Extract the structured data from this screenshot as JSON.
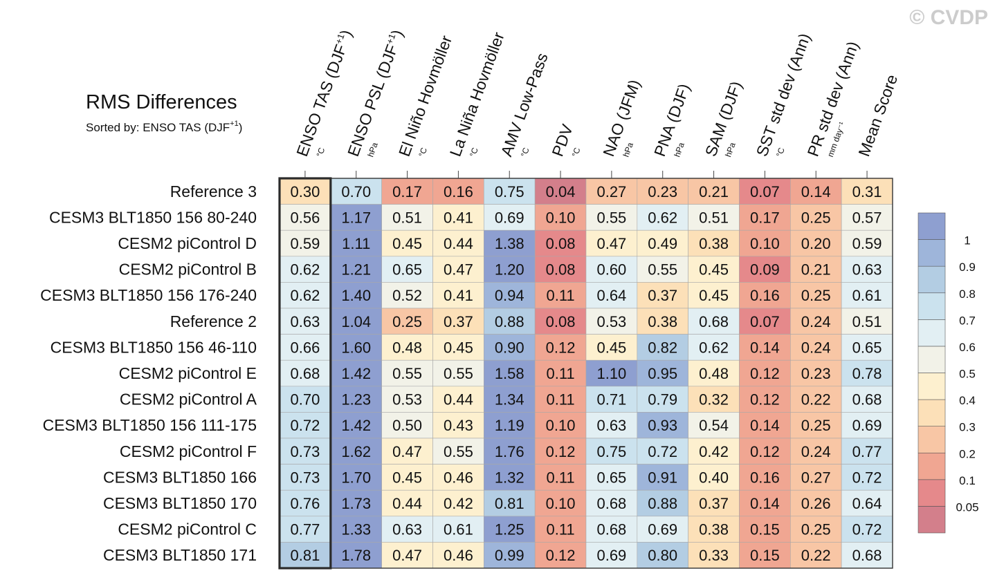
{
  "watermark": "© CVDP",
  "chart_data": {
    "type": "heatmap",
    "title": "RMS Differences",
    "subtitle_prefix": "Sorted by: ENSO TAS (DJF",
    "subtitle_sup": "+1",
    "subtitle_suffix": ")",
    "columns": [
      {
        "label": "ENSO TAS (DJF",
        "sup": "+1",
        "close": ")",
        "unit": "°C"
      },
      {
        "label": "ENSO PSL (DJF",
        "sup": "+1",
        "close": ")",
        "unit": "hPa"
      },
      {
        "label": "El Niño Hovmöller",
        "sup": "",
        "close": "",
        "unit": "°C"
      },
      {
        "label": "La Niña Hovmöller",
        "sup": "",
        "close": "",
        "unit": "°C"
      },
      {
        "label": "AMV Low-Pass",
        "sup": "",
        "close": "",
        "unit": "°C"
      },
      {
        "label": "PDV",
        "sup": "",
        "close": "",
        "unit": "°C"
      },
      {
        "label": "NAO (JFM)",
        "sup": "",
        "close": "",
        "unit": "hPa"
      },
      {
        "label": "PNA (DJF)",
        "sup": "",
        "close": "",
        "unit": "hPa"
      },
      {
        "label": "SAM (DJF)",
        "sup": "",
        "close": "",
        "unit": "hPa"
      },
      {
        "label": "SST std dev (Ann)",
        "sup": "",
        "close": "",
        "unit": "°C"
      },
      {
        "label": "PR std dev (Ann)",
        "sup": "",
        "close": "",
        "unit": "mm day⁻¹"
      },
      {
        "label": "Mean Score",
        "sup": "",
        "close": "",
        "unit": ""
      }
    ],
    "rows": [
      "Reference 3",
      "CESM3 BLT1850 156 80-240",
      "CESM2 piControl D",
      "CESM2 piControl B",
      "CESM3 BLT1850 156 176-240",
      "Reference 2",
      "CESM3 BLT1850 156 46-110",
      "CESM2 piControl E",
      "CESM2 piControl A",
      "CESM3 BLT1850 156 111-175",
      "CESM2 piControl F",
      "CESM3 BLT1850 166",
      "CESM3 BLT1850 170",
      "CESM2 piControl C",
      "CESM3 BLT1850 171"
    ],
    "values": [
      [
        "0.30",
        "0.70",
        "0.17",
        "0.16",
        "0.75",
        "0.04",
        "0.27",
        "0.23",
        "0.21",
        "0.07",
        "0.14",
        "0.31"
      ],
      [
        "0.56",
        "1.17",
        "0.51",
        "0.41",
        "0.69",
        "0.10",
        "0.55",
        "0.62",
        "0.51",
        "0.17",
        "0.25",
        "0.57"
      ],
      [
        "0.59",
        "1.11",
        "0.45",
        "0.44",
        "1.38",
        "0.08",
        "0.47",
        "0.49",
        "0.38",
        "0.10",
        "0.20",
        "0.59"
      ],
      [
        "0.62",
        "1.21",
        "0.65",
        "0.47",
        "1.20",
        "0.08",
        "0.60",
        "0.55",
        "0.45",
        "0.09",
        "0.21",
        "0.63"
      ],
      [
        "0.62",
        "1.40",
        "0.52",
        "0.41",
        "0.94",
        "0.11",
        "0.64",
        "0.37",
        "0.45",
        "0.16",
        "0.25",
        "0.61"
      ],
      [
        "0.63",
        "1.04",
        "0.25",
        "0.37",
        "0.88",
        "0.08",
        "0.53",
        "0.38",
        "0.68",
        "0.07",
        "0.24",
        "0.51"
      ],
      [
        "0.66",
        "1.60",
        "0.48",
        "0.45",
        "0.90",
        "0.12",
        "0.45",
        "0.82",
        "0.62",
        "0.14",
        "0.24",
        "0.65"
      ],
      [
        "0.68",
        "1.42",
        "0.55",
        "0.55",
        "1.58",
        "0.11",
        "1.10",
        "0.95",
        "0.48",
        "0.12",
        "0.23",
        "0.78"
      ],
      [
        "0.70",
        "1.23",
        "0.53",
        "0.44",
        "1.34",
        "0.11",
        "0.71",
        "0.79",
        "0.32",
        "0.12",
        "0.22",
        "0.68"
      ],
      [
        "0.72",
        "1.42",
        "0.50",
        "0.43",
        "1.19",
        "0.10",
        "0.63",
        "0.93",
        "0.54",
        "0.14",
        "0.25",
        "0.69"
      ],
      [
        "0.73",
        "1.62",
        "0.47",
        "0.55",
        "1.76",
        "0.12",
        "0.75",
        "0.72",
        "0.42",
        "0.12",
        "0.24",
        "0.77"
      ],
      [
        "0.73",
        "1.70",
        "0.45",
        "0.46",
        "1.32",
        "0.11",
        "0.65",
        "0.91",
        "0.40",
        "0.16",
        "0.27",
        "0.72"
      ],
      [
        "0.76",
        "1.73",
        "0.44",
        "0.42",
        "0.81",
        "0.10",
        "0.68",
        "0.88",
        "0.37",
        "0.14",
        "0.26",
        "0.64"
      ],
      [
        "0.77",
        "1.33",
        "0.63",
        "0.61",
        "1.25",
        "0.11",
        "0.68",
        "0.69",
        "0.38",
        "0.15",
        "0.25",
        "0.72"
      ],
      [
        "0.81",
        "1.78",
        "0.47",
        "0.46",
        "0.99",
        "0.12",
        "0.69",
        "0.80",
        "0.33",
        "0.15",
        "0.22",
        "0.68"
      ]
    ],
    "highlight_column": 0,
    "colorbar": {
      "levels": [
        "0.05",
        "0.1",
        "0.2",
        "0.3",
        "0.4",
        "0.5",
        "0.6",
        "0.7",
        "0.8",
        "0.9",
        "1"
      ],
      "colors": [
        "#d37f8b",
        "#e5898b",
        "#f0a692",
        "#f8c6a5",
        "#fce0b8",
        "#fdf0cf",
        "#f2f2e8",
        "#e2eff3",
        "#cbe2ee",
        "#b3cde3",
        "#9eb5da",
        "#8e9fd0"
      ]
    }
  }
}
